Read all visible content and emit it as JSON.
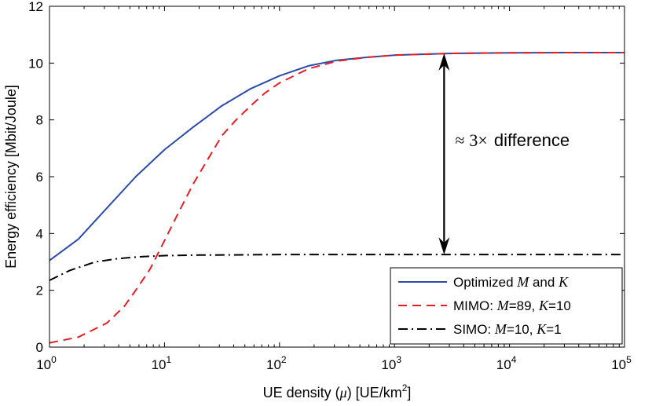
{
  "chart_data": {
    "type": "line",
    "xscale": "log",
    "xlim": [
      1,
      100000
    ],
    "ylim": [
      0,
      12
    ],
    "grid": false,
    "legend_position": "bottom-right",
    "xlabel_prefix": "UE density (",
    "xlabel_symbol": "μ",
    "xlabel_suffix": ") [UE/km",
    "xlabel_sup": "2",
    "xlabel_close": "]",
    "ylabel": "Energy efficiency [Mbit/Joule]",
    "x_ticks": [
      {
        "value": 1,
        "base": "10",
        "exp": "0"
      },
      {
        "value": 10,
        "base": "10",
        "exp": "1"
      },
      {
        "value": 100,
        "base": "10",
        "exp": "2"
      },
      {
        "value": 1000,
        "base": "10",
        "exp": "3"
      },
      {
        "value": 10000,
        "base": "10",
        "exp": "4"
      },
      {
        "value": 100000,
        "base": "10",
        "exp": "5"
      }
    ],
    "y_ticks": [
      {
        "value": 0,
        "label": "0"
      },
      {
        "value": 2,
        "label": "2"
      },
      {
        "value": 4,
        "label": "4"
      },
      {
        "value": 6,
        "label": "6"
      },
      {
        "value": 8,
        "label": "8"
      },
      {
        "value": 10,
        "label": "10"
      },
      {
        "value": 12,
        "label": "12"
      }
    ],
    "series": [
      {
        "key": "optimized",
        "legend_parts": [
          "Optimized ",
          "M",
          " and ",
          "K"
        ],
        "color": "#2b4ba8",
        "dash": "solid",
        "x": [
          1,
          1.78,
          3.16,
          5.62,
          10,
          17.8,
          31.6,
          56.2,
          100,
          178,
          316,
          562,
          1000,
          3160,
          10000,
          31600,
          100000
        ],
        "y": [
          3.05,
          3.8,
          4.9,
          6.0,
          6.95,
          7.75,
          8.5,
          9.1,
          9.55,
          9.9,
          10.1,
          10.2,
          10.28,
          10.34,
          10.36,
          10.37,
          10.37
        ]
      },
      {
        "key": "mimo",
        "legend_parts": [
          "MIMO: ",
          "M",
          "=89, ",
          "K",
          "=10"
        ],
        "color": "#e11f26",
        "dash": "dashed",
        "x": [
          1,
          1.78,
          3.16,
          4.5,
          5.62,
          7.5,
          10,
          13.3,
          17.8,
          23.7,
          31.6,
          42,
          56.2,
          75,
          100,
          178,
          316,
          562,
          1000,
          3160,
          10000,
          31600,
          100000
        ],
        "y": [
          0.15,
          0.35,
          0.85,
          1.45,
          2.0,
          2.75,
          3.75,
          4.75,
          5.75,
          6.6,
          7.45,
          8.0,
          8.5,
          8.95,
          9.3,
          9.8,
          10.07,
          10.2,
          10.28,
          10.34,
          10.36,
          10.37,
          10.37
        ]
      },
      {
        "key": "simo",
        "legend_parts": [
          "SIMO: ",
          "M",
          "=10, ",
          "K",
          "=1"
        ],
        "color": "#000000",
        "dash": "dashdot",
        "x": [
          1,
          1.5,
          2.5,
          4,
          6,
          10,
          20,
          50,
          100,
          1000,
          10000,
          100000
        ],
        "y": [
          2.35,
          2.7,
          3.0,
          3.12,
          3.18,
          3.22,
          3.24,
          3.25,
          3.26,
          3.26,
          3.26,
          3.26
        ]
      }
    ],
    "annotation": {
      "approx_symbol": "≈",
      "factor": "3×",
      "text": "difference",
      "arrow_x": 2700,
      "arrow_y_top": 10.34,
      "arrow_y_bottom": 3.26
    }
  }
}
